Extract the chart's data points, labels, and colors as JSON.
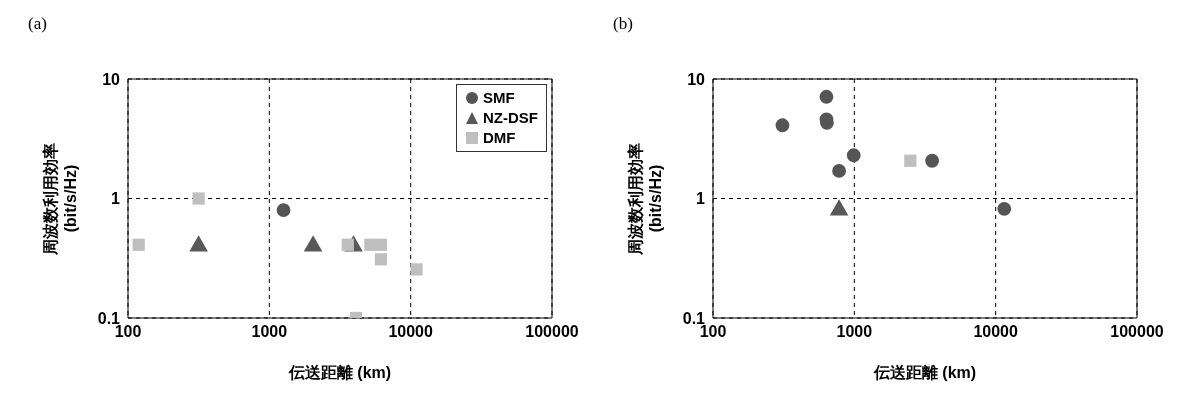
{
  "chart_data": [
    {
      "type": "scatter",
      "title": "(a)",
      "xlabel": "伝送距離 (km)",
      "ylabel": "周波数利用効率\n(bit/s/Hz)",
      "log": "xy",
      "xlim": [
        100,
        100000
      ],
      "xticks": [
        100,
        1000,
        10000,
        100000
      ],
      "ylim": [
        0.1,
        10
      ],
      "yticks": [
        0.1,
        1,
        10
      ],
      "grid": true,
      "legend": "top right",
      "series": [
        {
          "name": "SMF",
          "color": "#555555",
          "marker": "circle",
          "x": [
            1260
          ],
          "values": [
            0.8
          ]
        },
        {
          "name": "NZ-DSF",
          "color": "#595959",
          "marker": "triangle",
          "x": [
            316,
            2040,
            3940
          ],
          "values": [
            0.4,
            0.4,
            0.4
          ]
        },
        {
          "name": "DMF",
          "color": "#bfbfbf",
          "marker": "square",
          "x": [
            119,
            316,
            3590,
            5190,
            6160,
            6160,
            11000,
            4100
          ],
          "values": [
            0.41,
            1.0,
            0.41,
            0.41,
            0.41,
            0.31,
            0.255,
            0.1
          ]
        }
      ]
    },
    {
      "type": "scatter",
      "title": "(b)",
      "xlabel": "伝送距離 (km)",
      "ylabel": "周波数利用効率\n(bit/s/Hz)",
      "log": "xy",
      "xlim": [
        100,
        100000
      ],
      "xticks": [
        100,
        1000,
        10000,
        100000
      ],
      "ylim": [
        0.1,
        10
      ],
      "yticks": [
        0.1,
        1,
        10
      ],
      "grid": true,
      "series": [
        {
          "color": "#555555",
          "marker": "circle",
          "x": [
            310,
            635,
            635,
            640,
            990,
            780,
            3550,
            11500
          ],
          "values": [
            4.1,
            7.1,
            4.6,
            4.3,
            2.3,
            1.7,
            2.07,
            0.82
          ]
        },
        {
          "color": "#595959",
          "marker": "triangle",
          "x": [
            780
          ],
          "values": [
            0.8
          ]
        },
        {
          "color": "#bfbfbf",
          "marker": "square",
          "x": [
            2490
          ],
          "values": [
            2.07
          ]
        }
      ]
    }
  ]
}
